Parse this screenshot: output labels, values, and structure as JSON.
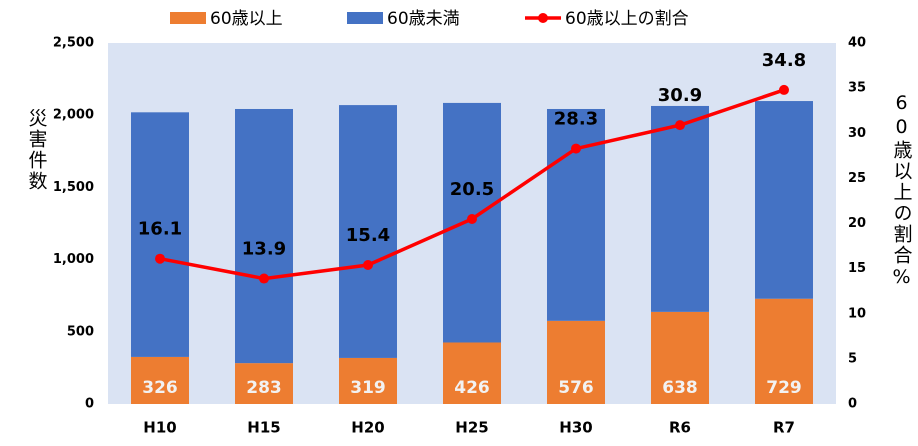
{
  "chart_data": {
    "type": "bar_line",
    "categories": [
      "H10",
      "H15",
      "H20",
      "H25",
      "H30",
      "R6",
      "R7"
    ],
    "series": [
      {
        "name": "60歳以上",
        "type": "bar",
        "color": "#ed7d31",
        "values": [
          326,
          283,
          319,
          426,
          576,
          638,
          729
        ],
        "data_labels": true
      },
      {
        "name": "60歳未満",
        "type": "bar",
        "color": "#4472c4",
        "values": [
          1694,
          1760,
          1751,
          1659,
          1467,
          1426,
          1369
        ],
        "data_labels": false
      },
      {
        "name": "60歳以上の割合",
        "type": "line",
        "axis": "y2",
        "color": "#ff0000",
        "values": [
          16.1,
          13.9,
          15.4,
          20.5,
          28.3,
          30.9,
          34.8
        ],
        "data_labels": true
      }
    ],
    "stacked": true,
    "ylabel": "災害件数",
    "y2label": "60歳以上の割合%",
    "ylim": [
      0,
      2500
    ],
    "yticks": [
      0,
      500,
      {
        "value": 1000,
        "label": "1,000"
      },
      {
        "value": 1500,
        "label": "1,500"
      },
      {
        "value": 2000,
        "label": "2,000"
      },
      {
        "value": 2500,
        "label": "2,500"
      }
    ],
    "y2lim": [
      0,
      40
    ],
    "y2ticks": [
      0,
      5,
      10,
      15,
      20,
      25,
      30,
      35,
      40
    ],
    "legend": "top",
    "plot_background": "#dae3f3"
  }
}
